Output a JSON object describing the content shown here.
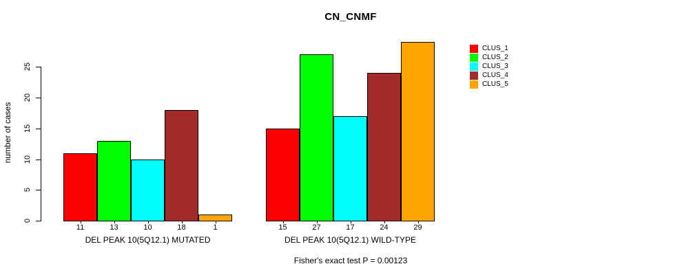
{
  "chart_data": {
    "type": "bar",
    "title": "CN_CNMF",
    "ylabel": "number of cases",
    "footnote": "Fisher's exact test P = 0.00123",
    "ylim": [
      0,
      29
    ],
    "yticks": [
      0,
      5,
      10,
      15,
      20,
      25
    ],
    "grid": false,
    "legend_position": "right",
    "categories": [
      "DEL PEAK 10(5Q12.1) MUTATED",
      "DEL PEAK 10(5Q12.1) WILD-TYPE"
    ],
    "groups": [
      {
        "label": "DEL PEAK 10(5Q12.1) MUTATED",
        "values": [
          11,
          13,
          10,
          18,
          1
        ]
      },
      {
        "label": "DEL PEAK 10(5Q12.1) WILD-TYPE",
        "values": [
          15,
          27,
          17,
          24,
          29
        ]
      }
    ],
    "series": [
      {
        "name": "CLUS_1",
        "color": "#FF0000",
        "values": [
          11,
          15
        ]
      },
      {
        "name": "CLUS_2",
        "color": "#00FF00",
        "values": [
          13,
          27
        ]
      },
      {
        "name": "CLUS_3",
        "color": "#00FFFF",
        "values": [
          10,
          17
        ]
      },
      {
        "name": "CLUS_4",
        "color": "#A52A2A",
        "values": [
          18,
          24
        ]
      },
      {
        "name": "CLUS_5",
        "color": "#FFA500",
        "values": [
          1,
          29
        ]
      }
    ],
    "bar_border_color": "#000000",
    "text_color": "#000000"
  }
}
